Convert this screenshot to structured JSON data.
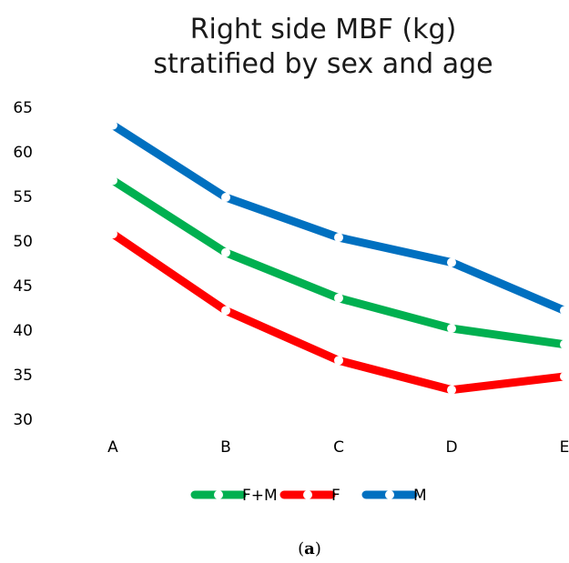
{
  "chart_data": {
    "type": "line",
    "title": [
      "Right side MBF (kg)",
      "stratified by sex and age"
    ],
    "categories": [
      "A",
      "B",
      "C",
      "D",
      "E"
    ],
    "ylim": [
      30,
      65
    ],
    "yticks": [
      30,
      35,
      40,
      45,
      50,
      55,
      60,
      65
    ],
    "grid": false,
    "legend_position": "bottom",
    "series": [
      {
        "name": "F+M",
        "color": "#00b050",
        "values": [
          56.8,
          48.7,
          43.6,
          40.2,
          38.4
        ]
      },
      {
        "name": "F",
        "color": "#ff0000",
        "values": [
          50.8,
          42.2,
          36.6,
          33.3,
          34.8
        ]
      },
      {
        "name": "M",
        "color": "#0070c0",
        "values": [
          63.0,
          54.9,
          50.4,
          47.6,
          42.2
        ]
      }
    ]
  },
  "caption": {
    "open": "(",
    "letter": "a",
    "close": ")"
  }
}
